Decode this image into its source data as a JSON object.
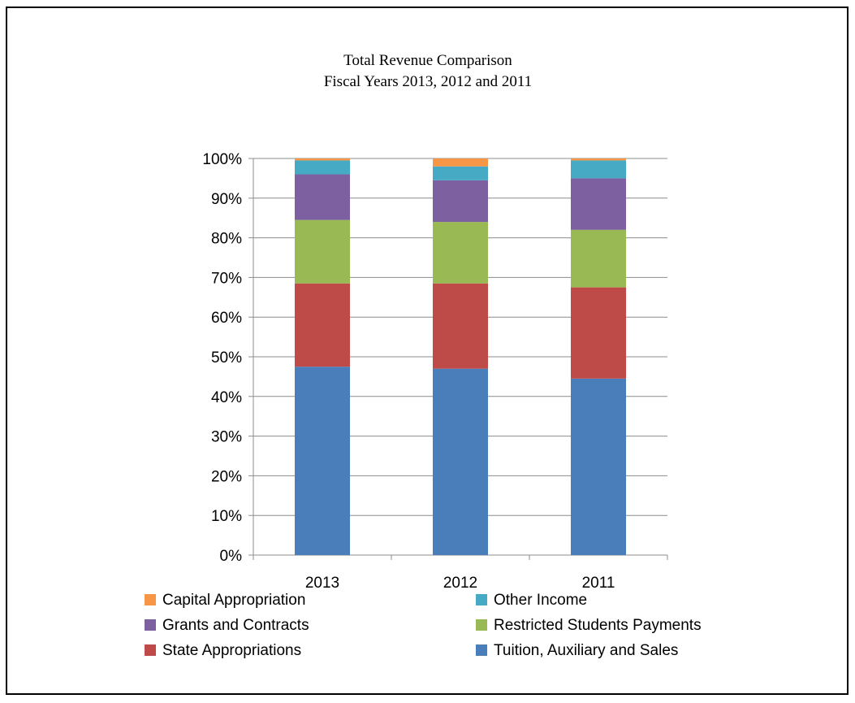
{
  "chart_data": {
    "type": "bar",
    "stacked": true,
    "percent": true,
    "title": "Total Revenue Comparison",
    "subtitle": "Fiscal Years 2013, 2012 and 2011",
    "categories": [
      "2013",
      "2012",
      "2011"
    ],
    "y_ticks": [
      "0%",
      "10%",
      "20%",
      "30%",
      "40%",
      "50%",
      "60%",
      "70%",
      "80%",
      "90%",
      "100%"
    ],
    "ylim": [
      0,
      100
    ],
    "grid": true,
    "legend_position": "bottom",
    "series": [
      {
        "name": "Tuition, Auxiliary and Sales",
        "color": "#4a7ebb",
        "values": [
          47.5,
          47,
          44.5
        ]
      },
      {
        "name": "State Appropriations",
        "color": "#be4b48",
        "values": [
          21,
          21.5,
          23
        ]
      },
      {
        "name": "Restricted Students Payments",
        "color": "#98b954",
        "values": [
          16,
          15.5,
          14.5
        ]
      },
      {
        "name": "Grants and Contracts",
        "color": "#7d60a0",
        "values": [
          11.5,
          10.5,
          13
        ]
      },
      {
        "name": "Other Income",
        "color": "#46aac5",
        "values": [
          3.5,
          3.5,
          4.5
        ]
      },
      {
        "name": "Capital Appropriation",
        "color": "#f79646",
        "values": [
          0.5,
          2,
          0.5
        ]
      }
    ],
    "legend_order": [
      "Capital Appropriation",
      "Other Income",
      "Grants and Contracts",
      "Restricted Students Payments",
      "State Appropriations",
      "Tuition, Auxiliary and Sales"
    ]
  }
}
